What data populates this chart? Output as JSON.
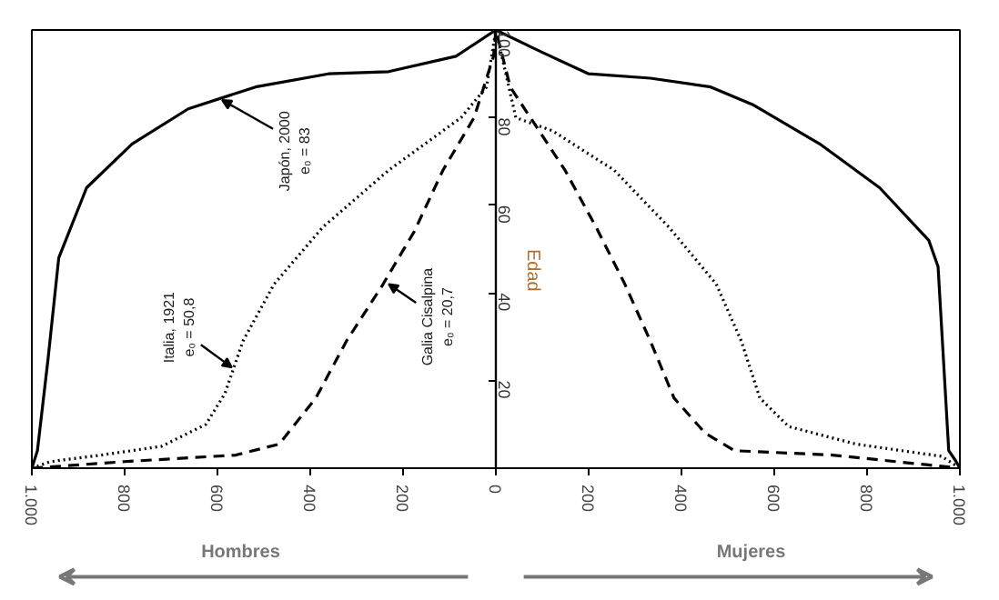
{
  "chart_data": {
    "type": "line",
    "ylabel": "Edad",
    "xlim": [
      -1000,
      1000
    ],
    "ylim": [
      0,
      100
    ],
    "xticks": [
      {
        "value": -1000,
        "label": "1.000"
      },
      {
        "value": -800,
        "label": "800"
      },
      {
        "value": -600,
        "label": "600"
      },
      {
        "value": -400,
        "label": "400"
      },
      {
        "value": -200,
        "label": "200"
      },
      0,
      200,
      400,
      600,
      800,
      {
        "value": 1000,
        "label": "1.000"
      }
    ],
    "yticks": [
      20,
      40,
      60,
      80,
      100
    ],
    "grid": false,
    "series": [
      {
        "color": "#000000",
        "line_style": "solid",
        "x": [
          -1000,
          -988,
          -965,
          -942,
          -882,
          -784,
          -663,
          -518,
          -361,
          -231,
          -86,
          0,
          98,
          200,
          333,
          463,
          553,
          698,
          827,
          933,
          953,
          976,
          992,
          1000
        ],
        "values": [
          0,
          4,
          25,
          48,
          64,
          74,
          82,
          87,
          90,
          90.5,
          94,
          100,
          95,
          90,
          89,
          87,
          83,
          74,
          64,
          52,
          46,
          4,
          1.5,
          0
        ]
      },
      {
        "color": "#000000",
        "line_style": "dotted",
        "x": [
          -1000,
          -960,
          -850,
          -720,
          -625,
          -584,
          -545,
          -478,
          -373,
          -231,
          -75,
          -20,
          0,
          43,
          122,
          255,
          373,
          475,
          529,
          569,
          631,
          776,
          961,
          1000
        ],
        "values": [
          0,
          1.5,
          3,
          5,
          10,
          17,
          29,
          42,
          55,
          68,
          80,
          87,
          100,
          80,
          77,
          68,
          55,
          42,
          29,
          16,
          9.5,
          5.5,
          2.7,
          0
        ]
      },
      {
        "color": "#000000",
        "line_style": "dashed",
        "x": [
          -1000,
          -800,
          -560,
          -467,
          -388,
          -322,
          -243,
          -176,
          -114,
          -47,
          -5,
          0,
          31,
          149,
          216,
          278,
          333,
          384,
          451,
          514,
          725,
          1000
        ],
        "values": [
          0,
          1.5,
          3,
          5.5,
          16,
          29,
          42,
          54,
          68,
          80,
          94,
          100,
          87,
          68,
          55,
          42,
          29,
          16,
          8,
          4,
          3,
          0
        ]
      }
    ],
    "annotations": [
      {
        "text": "Japón, 2000\ne₀ = 83",
        "x": -590,
        "y": 84
      },
      {
        "text": "Italia, 1921\ne₀ = 50,8",
        "x": -569,
        "y": 23
      },
      {
        "text": "Galia Cisalpina\ne₀ = 20,7",
        "x": -231,
        "y": 42
      },
      "Hombres",
      "Mujeres"
    ]
  }
}
